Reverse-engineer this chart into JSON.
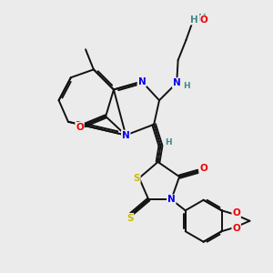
{
  "bg_color": "#ebebeb",
  "atom_colors": {
    "N": "#0000ee",
    "O": "#ee0000",
    "S": "#ccbb00",
    "C": "#111111",
    "H": "#448888"
  },
  "bond_color": "#111111",
  "bond_lw": 1.4,
  "fs": 7.5,
  "fs_small": 6.5
}
